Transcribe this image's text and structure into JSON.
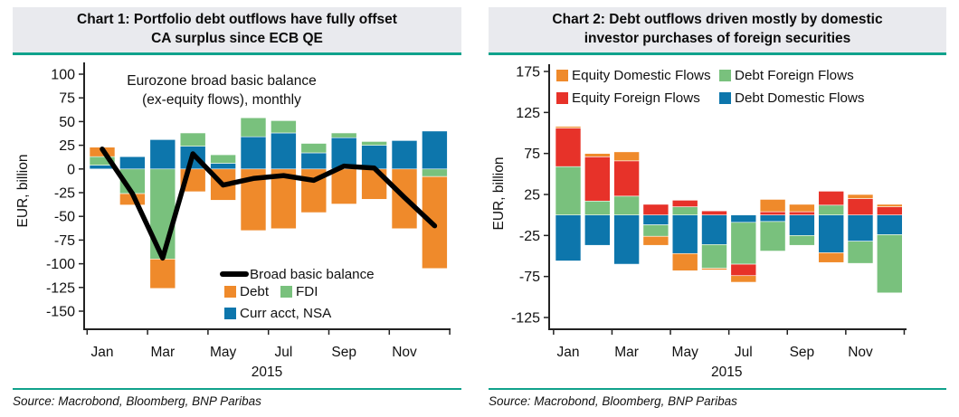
{
  "colors": {
    "accent_teal": "#10A28C",
    "title_band_bg": "#E9EAEE",
    "bar_blue": "#0D76AC",
    "bar_green": "#79C17D",
    "bar_orange": "#EF8A2B",
    "bar_red": "#E73229",
    "line_black": "#000000"
  },
  "panels": [
    {
      "title": "Chart 1: Portfolio debt outflows have fully offset CA surplus since ECB QE",
      "title_line1": "Chart 1: Portfolio debt outflows have fully offset",
      "title_line2": "CA surplus since ECB QE",
      "source": "Source: Macrobond, Bloomberg, BNP Paribas"
    },
    {
      "title": "Chart 2: Debt outflows driven mostly by domestic investor purchases of foreign securities",
      "title_line1": "Chart 2: Debt outflows driven mostly by domestic",
      "title_line2": "investor purchases of foreign securities",
      "source": "Source: Macrobond, Bloomberg, BNP Paribas"
    }
  ],
  "chart_data": [
    {
      "type": "bar",
      "stacked": true,
      "title": "Chart 1: Portfolio debt outflows have fully offset CA surplus since ECB QE",
      "annotation": [
        "Eurozone broad basic balance",
        "(ex-equity flows), monthly"
      ],
      "xlabel": "2015",
      "ylabel": "EUR, billion",
      "ylim": [
        -150,
        100
      ],
      "yticks": [
        100,
        75,
        50,
        25,
        0,
        -25,
        -50,
        -75,
        -100,
        -125,
        -150
      ],
      "categories": [
        "Jan",
        "Feb",
        "Mar",
        "Apr",
        "May",
        "Jun",
        "Jul",
        "Aug",
        "Sep",
        "Oct",
        "Nov",
        "Dec"
      ],
      "xtick_labels": [
        "Jan",
        "Mar",
        "May",
        "Jul",
        "Sep",
        "Nov"
      ],
      "year_label": "2015",
      "grid": false,
      "legend_position": "inside-bottom-right",
      "series": [
        {
          "name": "Curr acct, NSA",
          "color": "#0D76AC",
          "values": [
            4,
            13,
            31,
            24,
            6,
            34,
            38,
            17,
            33,
            25,
            30,
            40
          ]
        },
        {
          "name": "FDI",
          "color": "#79C17D",
          "values": [
            9,
            -26,
            -95,
            14,
            9,
            20,
            13,
            10,
            5,
            4,
            0,
            -8
          ]
        },
        {
          "name": "Debt",
          "color": "#EF8A2B",
          "values": [
            10,
            -12,
            -31,
            -24,
            -33,
            -65,
            -63,
            -46,
            -37,
            -32,
            -63,
            -97
          ]
        }
      ],
      "line_series": {
        "name": "Broad basic balance",
        "color": "#000000",
        "values": [
          21,
          -26,
          -94,
          16,
          -17,
          -10,
          -7,
          -12,
          3,
          1,
          -30,
          -60
        ]
      },
      "legend": [
        {
          "type": "line",
          "label": "Broad basic balance",
          "color": "#000000"
        },
        {
          "type": "box",
          "label": "Debt",
          "color": "#EF8A2B"
        },
        {
          "type": "box",
          "label": "FDI",
          "color": "#79C17D"
        },
        {
          "type": "box",
          "label": "Curr acct, NSA",
          "color": "#0D76AC"
        }
      ]
    },
    {
      "type": "bar",
      "stacked": true,
      "title": "Chart 2: Debt outflows driven mostly by domestic investor purchases of foreign securities",
      "annotation": [],
      "xlabel": "2015",
      "ylabel": "EUR, billion",
      "ylim": [
        -125,
        175
      ],
      "yticks": [
        175,
        125,
        75,
        25,
        -25,
        -75,
        -125
      ],
      "categories": [
        "Jan",
        "Feb",
        "Mar",
        "Apr",
        "May",
        "Jun",
        "Jul",
        "Aug",
        "Sep",
        "Oct",
        "Nov",
        "Dec"
      ],
      "xtick_labels": [
        "Jan",
        "Mar",
        "May",
        "Jul",
        "Sep",
        "Nov"
      ],
      "year_label": "2015",
      "grid": false,
      "legend_position": "top",
      "series": [
        {
          "name": "Debt Domestic Flows",
          "color": "#0D76AC",
          "values": [
            -56,
            -37,
            -60,
            -12,
            -47,
            -36,
            -9,
            -8,
            -25,
            -46,
            -32,
            -24
          ]
        },
        {
          "name": "Debt Foreign Flows",
          "color": "#79C17D",
          "values": [
            59,
            17,
            23,
            -14,
            10,
            -29,
            -51,
            -36,
            -12,
            12,
            -27,
            -71
          ]
        },
        {
          "name": "Equity Foreign Flows",
          "color": "#E73229",
          "values": [
            47,
            54,
            43,
            13,
            8,
            5,
            -14,
            4,
            4,
            17,
            20,
            10
          ]
        },
        {
          "name": "Equity Domestic Flows",
          "color": "#EF8A2B",
          "values": [
            2,
            4,
            11,
            -11,
            -21,
            -2,
            -8,
            15,
            9,
            -12,
            5,
            3
          ]
        }
      ],
      "legend": [
        {
          "type": "box",
          "label": "Equity Domestic Flows",
          "color": "#EF8A2B"
        },
        {
          "type": "box",
          "label": "Debt Foreign Flows",
          "color": "#79C17D"
        },
        {
          "type": "box",
          "label": "Equity Foreign Flows",
          "color": "#E73229"
        },
        {
          "type": "box",
          "label": "Debt Domestic Flows",
          "color": "#0D76AC"
        }
      ]
    }
  ]
}
